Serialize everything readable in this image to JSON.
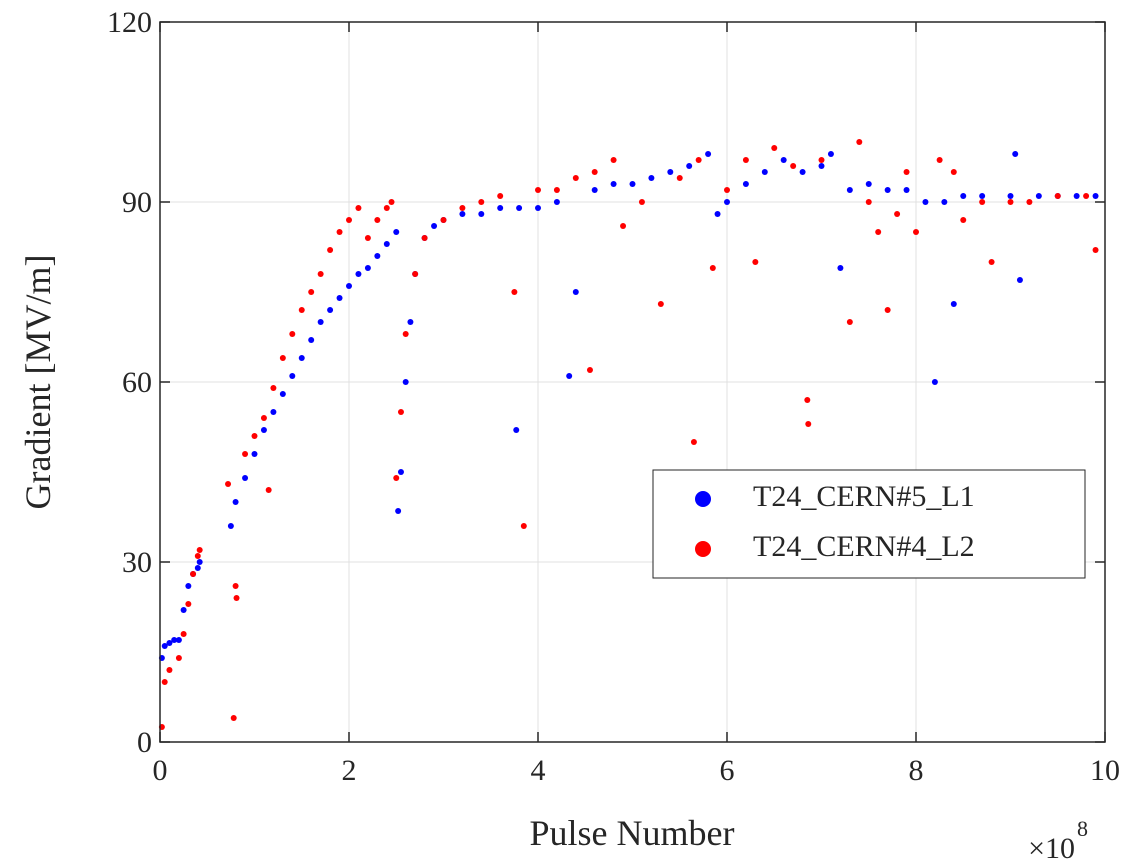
{
  "chart_data": {
    "type": "scatter",
    "x_label": "Pulse Number",
    "y_label": "Gradient [MV/m]",
    "x_scale_base": "×10",
    "x_scale_exponent": "8",
    "xlim": [
      0,
      10
    ],
    "ylim": [
      0,
      120
    ],
    "xticks": [
      0,
      2,
      4,
      6,
      8,
      10
    ],
    "yticks": [
      0,
      30,
      60,
      90,
      120
    ],
    "grid": true,
    "legend": "right",
    "series": [
      {
        "name": "T24_CERN#5_L1",
        "color": "#0000ff",
        "x": [
          0.02,
          0.05,
          0.1,
          0.15,
          0.2,
          0.25,
          0.3,
          0.35,
          0.4,
          0.42,
          0.75,
          0.8,
          0.9,
          1.0,
          1.1,
          1.2,
          1.3,
          1.4,
          1.5,
          1.6,
          1.7,
          1.8,
          1.9,
          2.0,
          2.1,
          2.2,
          2.3,
          2.4,
          2.5,
          2.52,
          2.55,
          2.6,
          2.65,
          2.7,
          2.8,
          2.9,
          3.0,
          3.2,
          3.4,
          3.6,
          3.8,
          3.77,
          4.0,
          4.2,
          4.33,
          4.4,
          4.6,
          4.8,
          5.0,
          5.2,
          5.4,
          5.6,
          5.8,
          5.9,
          6.0,
          6.2,
          6.4,
          6.6,
          6.8,
          7.0,
          7.1,
          7.2,
          7.3,
          7.5,
          7.7,
          7.9,
          8.1,
          8.2,
          8.3,
          8.4,
          8.5,
          8.7,
          9.0,
          9.05,
          9.1,
          9.3,
          9.5,
          9.7,
          9.9
        ],
        "values": [
          14,
          16,
          16.5,
          17,
          17,
          22,
          26,
          28,
          29,
          30,
          36,
          40,
          44,
          48,
          52,
          55,
          58,
          61,
          64,
          67,
          70,
          72,
          74,
          76,
          78,
          79,
          81,
          83,
          85,
          38.5,
          45,
          60,
          70,
          78,
          84,
          86,
          87,
          88,
          88,
          89,
          89,
          52,
          89,
          90,
          61,
          75,
          92,
          93,
          93,
          94,
          95,
          96,
          98,
          88,
          90,
          93,
          95,
          97,
          95,
          96,
          98,
          79,
          92,
          93,
          92,
          92,
          90,
          60,
          90,
          73,
          91,
          91,
          91,
          98,
          77,
          91,
          91,
          91,
          91
        ]
      },
      {
        "name": "T24_CERN#4_L2",
        "color": "#ff0000",
        "x": [
          0.02,
          0.05,
          0.1,
          0.2,
          0.25,
          0.3,
          0.35,
          0.4,
          0.42,
          0.72,
          0.78,
          0.8,
          0.81,
          0.9,
          1.0,
          1.1,
          1.15,
          1.2,
          1.3,
          1.4,
          1.5,
          1.6,
          1.7,
          1.8,
          1.9,
          2.0,
          2.1,
          2.2,
          2.3,
          2.4,
          2.45,
          2.5,
          2.55,
          2.6,
          2.7,
          2.8,
          3.0,
          3.2,
          3.4,
          3.6,
          3.75,
          3.85,
          4.0,
          4.2,
          4.4,
          4.55,
          4.6,
          4.8,
          4.9,
          5.1,
          5.3,
          5.5,
          5.65,
          5.7,
          5.85,
          6.0,
          6.2,
          6.3,
          6.5,
          6.7,
          6.85,
          6.86,
          7.0,
          7.3,
          7.4,
          7.5,
          7.6,
          7.7,
          7.8,
          7.9,
          8.0,
          8.25,
          8.4,
          8.5,
          8.7,
          8.8,
          9.0,
          9.2,
          9.5,
          9.8,
          9.9
        ],
        "values": [
          2.5,
          10,
          12,
          14,
          18,
          23,
          28,
          31,
          32,
          43,
          4,
          26,
          24,
          48,
          51,
          54,
          42,
          59,
          64,
          68,
          72,
          75,
          78,
          82,
          85,
          87,
          89,
          84,
          87,
          89,
          90,
          44,
          55,
          68,
          78,
          84,
          87,
          89,
          90,
          91,
          75,
          36,
          92,
          92,
          94,
          62,
          95,
          97,
          86,
          90,
          73,
          94,
          50,
          97,
          79,
          92,
          97,
          80,
          99,
          96,
          57,
          53,
          97,
          70,
          100,
          90,
          85,
          72,
          88,
          95,
          85,
          97,
          95,
          87,
          90,
          80,
          90,
          90,
          91,
          91,
          82
        ]
      }
    ]
  }
}
